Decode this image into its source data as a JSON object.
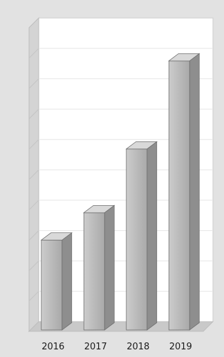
{
  "chart_data": {
    "type": "bar",
    "style": "3d-column",
    "categories": [
      "2016",
      "2017",
      "2018",
      "2019"
    ],
    "values": [
      28,
      37,
      58,
      87
    ],
    "ylim": [
      0,
      100
    ],
    "grid": true,
    "legend": "none",
    "title": "",
    "xlabel": "",
    "ylabel": ""
  },
  "colors": {
    "background": "#e2e2e2",
    "wall": "#ffffff",
    "side_wall": "#d4d4d4",
    "floor": "#c9c9c9",
    "gridline": "#e6e6e6",
    "bar_front_light": "#cccccc",
    "bar_front_dark": "#a9a9a9",
    "bar_side": "#8e8e8e",
    "bar_top": "#d9d9d9",
    "label_text": "#1a1a1a"
  }
}
